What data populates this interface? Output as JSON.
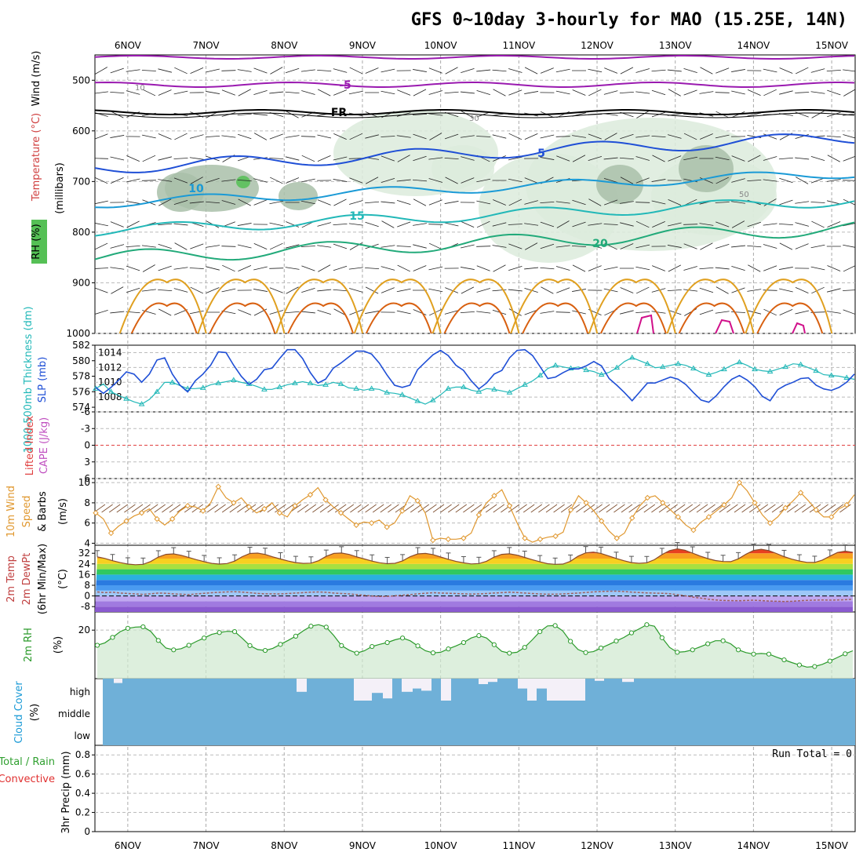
{
  "title": "GFS 0~10day 3-hourly for MAO (15.25E, 14N)",
  "colors": {
    "purple": "#9a1ab0",
    "blue": "#1f4fd6",
    "lightblue": "#1a9ad6",
    "cyan": "#22b8b8",
    "teal": "#22aa7a",
    "orange": "#e0a020",
    "darkorange": "#d86010",
    "magenta": "#d0108a",
    "cloud": "#6fb0d8",
    "rh": "#2a9a2a",
    "ten_m": "#e09830",
    "green_fill": "#cfe8cf"
  },
  "chart_data": [
    {
      "id": "upper_air",
      "type": "contour",
      "ylabels": [
        "Wind (m/s)",
        "Temperature (°C)",
        "RH (%)",
        "(millibars)"
      ],
      "yticks": [
        "500",
        "600",
        "700",
        "800",
        "900",
        "1000"
      ],
      "yrange": [
        450,
        1000
      ],
      "isotherm_labels": [
        "-5",
        "FR",
        "5",
        "10",
        "15",
        "20"
      ],
      "rh_labels": [
        "10",
        "30",
        "50"
      ]
    },
    {
      "id": "slp_thickness",
      "type": "line",
      "ylabels": [
        "1000-500mb Thickness (dm)",
        "SLP (mb)"
      ],
      "left_ticks": [
        "574",
        "576",
        "578",
        "580",
        "582"
      ],
      "right_ticks": [
        "1008",
        "1010",
        "1012",
        "1014"
      ],
      "slp_range": [
        1006,
        1015
      ],
      "slp": [
        1009.3,
        1008.5,
        1009.3,
        1010.3,
        1011.4,
        1011.1,
        1010.0,
        1011.1,
        1013.0,
        1013.3,
        1011.1,
        1009.6,
        1008.7,
        1010.2,
        1011.1,
        1012.3,
        1014.1,
        1014.0,
        1012.3,
        1010.8,
        1009.7,
        1010.4,
        1011.7,
        1011.9,
        1013.2,
        1014.4,
        1014.4,
        1013.2,
        1011.3,
        1009.9,
        1010.4,
        1011.9,
        1012.6,
        1013.4,
        1014.2,
        1014.2,
        1013.8,
        1012.6,
        1011.0,
        1009.6,
        1009.3,
        1009.6,
        1011.7,
        1012.7,
        1013.7,
        1014.3,
        1013.6,
        1012.3,
        1011.6,
        1010.2,
        1009.1,
        1009.9,
        1011.1,
        1011.6,
        1013.3,
        1014.3,
        1014.4,
        1013.6,
        1012.1,
        1010.5,
        1010.7,
        1011.3,
        1011.8,
        1011.8,
        1012.2,
        1012.8,
        1012.2,
        1010.5,
        1009.6,
        1008.6,
        1007.5,
        1008.7,
        1009.9,
        1009.9,
        1010.3,
        1010.7,
        1010.4,
        1009.7,
        1008.6,
        1007.6,
        1007.3,
        1008.2,
        1009.4,
        1010.4,
        1010.9,
        1010.3,
        1009.4,
        1008.1,
        1007.5,
        1009.0,
        1009.6,
        1010.0,
        1010.5,
        1010.6,
        1009.6,
        1009.1,
        1008.9,
        1009.3,
        1010.0,
        1011.1
      ],
      "thickness_range": [
        573.4,
        582
      ],
      "thickness": [
        576.4,
        577.0,
        576.0,
        575.5,
        575.1,
        574.7,
        574.4,
        575.0,
        576.0,
        577.2,
        577.2,
        576.8,
        576.4,
        576.4,
        576.5,
        576.9,
        577.1,
        577.3,
        577.5,
        577.2,
        577.0,
        576.7,
        576.3,
        576.3,
        576.6,
        576.9,
        577.1,
        577.3,
        577.1,
        576.8,
        576.9,
        577.2,
        577.0,
        576.5,
        576.4,
        576.2,
        576.4,
        576.3,
        575.9,
        575.8,
        575.6,
        575.2,
        574.8,
        574.4,
        574.9,
        575.6,
        576.4,
        576.6,
        576.6,
        576.2,
        576.0,
        576.4,
        576.3,
        576.1,
        575.9,
        576.4,
        576.9,
        577.4,
        578.1,
        579.0,
        579.4,
        579.2,
        579.0,
        579.2,
        578.8,
        578.6,
        578.2,
        578.5,
        579.1,
        579.9,
        580.4,
        580.0,
        579.6,
        579.1,
        579.2,
        579.4,
        579.6,
        579.4,
        579.0,
        578.5,
        578.2,
        578.5,
        578.9,
        579.4,
        579.8,
        579.4,
        578.9,
        578.7,
        578.6,
        578.9,
        579.2,
        579.6,
        579.5,
        579.1,
        578.7,
        578.2,
        578.1,
        578.0,
        577.8,
        577.6
      ]
    },
    {
      "id": "cape_li",
      "type": "line",
      "ylabels": [
        "Lifted Index",
        "CAPE (J/kg)"
      ],
      "yticks": [
        "-6",
        "-3",
        "0",
        "3",
        "6"
      ],
      "yrange": [
        -6,
        6
      ]
    },
    {
      "id": "wind10m",
      "type": "line",
      "ylabels": [
        "10m Wind Speed & Barbs",
        "(m/s)"
      ],
      "yticks": [
        "4",
        "6",
        "8",
        "10"
      ],
      "yrange": [
        3.8,
        10.4
      ],
      "speed": [
        7.0,
        6.4,
        5.0,
        5.7,
        6.2,
        6.7,
        7.0,
        7.4,
        6.4,
        5.8,
        6.4,
        7.2,
        7.7,
        7.6,
        7.2,
        8.0,
        9.6,
        8.5,
        8.0,
        8.5,
        7.6,
        7.0,
        7.4,
        8.0,
        7.0,
        6.6,
        7.7,
        8.3,
        8.8,
        9.5,
        8.3,
        7.6,
        7.0,
        6.4,
        5.8,
        6.1,
        6.0,
        6.3,
        5.6,
        6.0,
        7.2,
        8.7,
        8.2,
        7.0,
        4.3,
        4.5,
        4.4,
        4.4,
        4.5,
        5.0,
        6.8,
        8.0,
        8.7,
        9.3,
        7.7,
        6.0,
        4.5,
        4.1,
        4.4,
        4.6,
        4.7,
        5.1,
        7.3,
        8.7,
        8.0,
        7.2,
        6.2,
        5.2,
        4.5,
        5.0,
        6.5,
        7.7,
        8.5,
        8.7,
        8.0,
        7.3,
        6.6,
        5.8,
        5.3,
        6.1,
        6.6,
        7.2,
        7.8,
        8.5,
        10.0,
        9.2,
        8.0,
        6.8,
        6.0,
        6.6,
        7.5,
        8.2,
        9.0,
        8.2,
        7.3,
        6.6,
        6.6,
        7.4,
        7.8,
        8.8
      ]
    },
    {
      "id": "temp2m",
      "type": "area",
      "ylabels": [
        "2m Temp",
        "2m DewPt",
        "(6hr Min/Max)",
        "(°C)"
      ],
      "yticks": [
        "-8",
        "0",
        "8",
        "16",
        "24",
        "32"
      ],
      "yrange": [
        -12,
        38
      ],
      "temp": [
        29.3,
        28.1,
        26.4,
        25.0,
        23.9,
        23.4,
        23.7,
        25.8,
        29.2,
        31.2,
        31.5,
        30.5,
        28.8,
        27.2,
        25.7,
        24.4,
        23.9,
        24.3,
        26.1,
        29.5,
        31.8,
        32.1,
        31.1,
        29.3,
        27.7,
        26.2,
        25.0,
        24.4,
        24.6,
        26.4,
        29.7,
        31.9,
        32.2,
        31.1,
        29.3,
        27.7,
        26.1,
        24.9,
        24.2,
        24.5,
        26.3,
        29.5,
        31.5,
        31.9,
        31.0,
        29.2,
        27.5,
        25.9,
        24.8,
        24.0,
        24.3,
        26.0,
        29.2,
        31.2,
        31.6,
        30.6,
        28.9,
        27.2,
        25.6,
        24.2,
        23.7,
        23.9,
        26.0,
        29.8,
        32.3,
        32.9,
        31.9,
        30.0,
        28.1,
        26.4,
        25.0,
        24.5,
        24.9,
        27.2,
        31.0,
        34.0,
        35.3,
        34.3,
        32.1,
        29.9,
        28.0,
        26.5,
        25.8,
        25.7,
        27.8,
        31.3,
        34.1,
        35.0,
        34.0,
        31.8,
        29.5,
        27.6,
        26.2,
        25.2,
        25.1,
        26.9,
        29.8,
        32.6,
        33.6,
        32.7
      ],
      "dewpt": [
        3.0,
        2.5,
        2.8,
        2.2,
        1.8,
        1.5,
        1.2,
        1.6,
        2.2,
        2.0,
        1.5,
        1.3,
        1.0,
        1.5,
        2.0,
        2.4,
        2.7,
        3.0,
        3.2,
        2.9,
        2.4,
        1.9,
        1.6,
        1.6,
        1.5,
        1.8,
        2.2,
        2.5,
        2.8,
        3.0,
        2.7,
        2.2,
        1.8,
        1.5,
        1.0,
        0.5,
        0.0,
        -0.4,
        -0.3,
        0.2,
        0.6,
        1.0,
        1.6,
        2.0,
        2.4,
        2.2,
        2.0,
        1.8,
        1.6,
        1.4,
        1.5,
        1.8,
        2.2,
        2.5,
        2.8,
        2.6,
        2.2,
        1.8,
        1.5,
        1.3,
        1.3,
        1.5,
        1.8,
        2.2,
        2.6,
        3.0,
        3.3,
        3.5,
        3.6,
        3.3,
        2.9,
        2.6,
        2.3,
        2.1,
        2.0,
        1.7,
        1.0,
        0.2,
        -0.8,
        -1.6,
        -2.4,
        -3.0,
        -3.4,
        -3.5,
        -3.6,
        -3.4,
        -3.2,
        -3.5,
        -3.8,
        -4.0,
        -4.2,
        -4.0,
        -3.6,
        -3.3,
        -3.1,
        -3.0,
        -3.1,
        -3.0,
        -2.8,
        -2.4
      ]
    },
    {
      "id": "rh2m",
      "type": "area",
      "ylabels": [
        "2m RH",
        "(%)"
      ],
      "yticks": [
        "20"
      ],
      "yrange": [
        4,
        26
      ],
      "rh": [
        15.0,
        15.8,
        17.6,
        19.5,
        20.6,
        21.0,
        21.1,
        19.6,
        16.6,
        14.1,
        13.5,
        13.9,
        15.0,
        16.3,
        17.4,
        18.6,
        19.2,
        19.6,
        19.5,
        17.3,
        14.9,
        13.6,
        13.3,
        14.0,
        15.3,
        16.6,
        18.0,
        19.8,
        21.3,
        21.8,
        21.0,
        18.2,
        14.9,
        13.4,
        12.4,
        13.2,
        14.6,
        15.3,
        15.9,
        16.8,
        17.4,
        16.5,
        14.8,
        13.2,
        12.5,
        12.7,
        13.8,
        14.8,
        15.9,
        17.4,
        18.2,
        17.4,
        15.2,
        13.0,
        12.4,
        12.7,
        14.3,
        16.8,
        19.5,
        21.4,
        21.5,
        19.7,
        16.3,
        13.6,
        12.6,
        12.9,
        14.1,
        15.2,
        16.4,
        17.6,
        19.1,
        20.4,
        21.8,
        21.3,
        17.5,
        14.3,
        12.7,
        12.9,
        13.5,
        14.5,
        15.5,
        16.5,
        16.5,
        15.5,
        13.5,
        12.6,
        12.1,
        12.3,
        12.1,
        11.1,
        10.2,
        9.3,
        8.5,
        7.8,
        8.0,
        8.7,
        9.8,
        11.0,
        12.2,
        13.2
      ]
    },
    {
      "id": "cloud",
      "type": "bar",
      "ylabels": [
        "Cloud Cover",
        "(%)"
      ],
      "yticks": [
        "low",
        "middle",
        "high"
      ],
      "high_gaps": [
        [
          145,
          156,
          0.2
        ],
        [
          378,
          391,
          0.6
        ],
        [
          451,
          474,
          1.0
        ],
        [
          474,
          488,
          0.65
        ],
        [
          488,
          500,
          0.9
        ],
        [
          512,
          526,
          0.6
        ],
        [
          526,
          537,
          0.45
        ],
        [
          537,
          550,
          0.55
        ],
        [
          562,
          575,
          1.0
        ],
        [
          610,
          622,
          0.25
        ],
        [
          622,
          634,
          0.15
        ],
        [
          660,
          672,
          0.45
        ],
        [
          672,
          684,
          1.0
        ],
        [
          684,
          697,
          0.45
        ],
        [
          697,
          746,
          1.0
        ],
        [
          758,
          770,
          0.1
        ],
        [
          793,
          808,
          0.15
        ]
      ]
    },
    {
      "id": "precip",
      "type": "bar",
      "ylabels": [
        "Total / Rain",
        "Convective",
        "3hr Precip (mm)"
      ],
      "yticks": [
        "0",
        "0.2",
        "0.4",
        "0.6",
        "0.8"
      ],
      "yrange": [
        0,
        0.9
      ],
      "values": [],
      "run_total": "Run Total = 0"
    }
  ],
  "x_axis": {
    "labels": [
      "6NOV",
      "7NOV",
      "8NOV",
      "9NOV",
      "10NOV",
      "11NOV",
      "12NOV",
      "13NOV",
      "14NOV",
      "15NOV"
    ],
    "start_day": 5.58,
    "end_day": 15.3
  }
}
